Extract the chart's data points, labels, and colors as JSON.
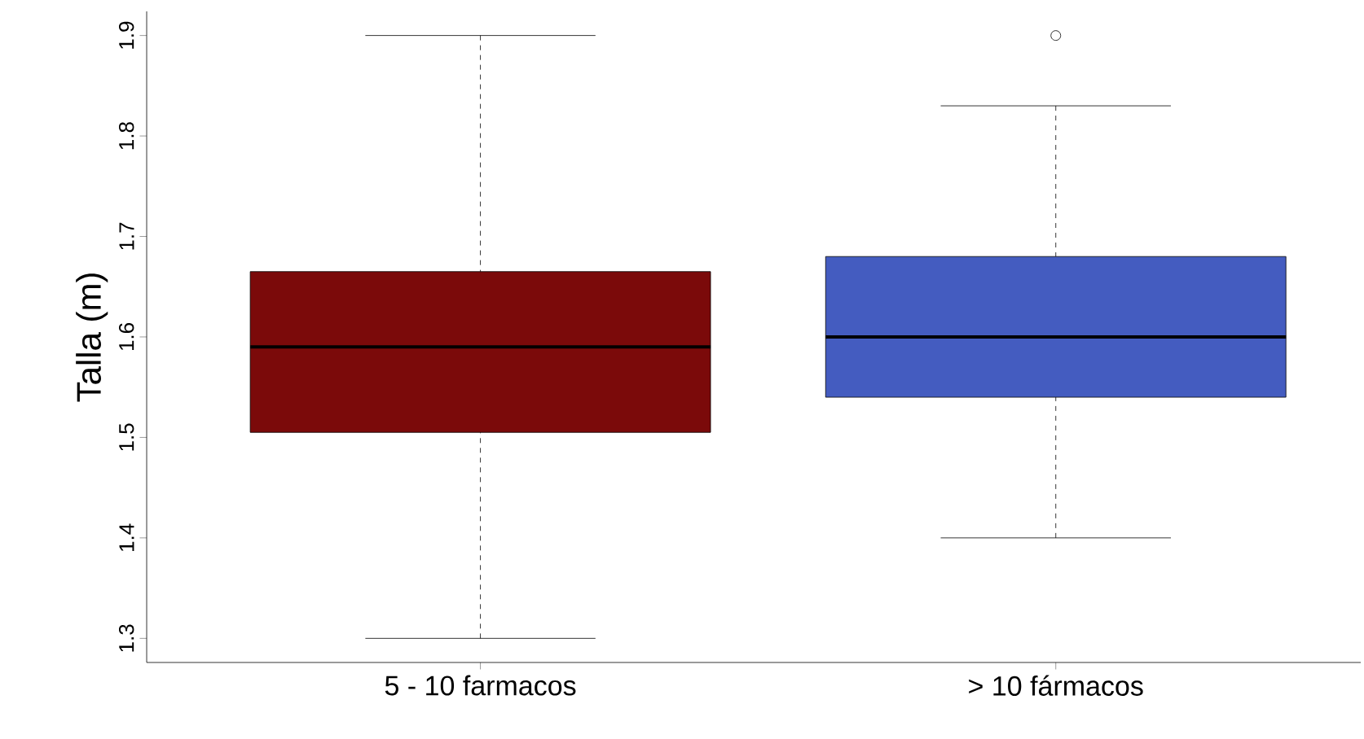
{
  "chart_data": {
    "type": "box",
    "ylabel": "Talla (m)",
    "categories": [
      "5 - 10 farmacos",
      "> 10 fármacos"
    ],
    "colors": [
      "#7b0a0a",
      "#445cc0"
    ],
    "boxes": [
      {
        "low": 1.3,
        "q1": 1.505,
        "median": 1.59,
        "q3": 1.665,
        "high": 1.9
      },
      {
        "low": 1.4,
        "q1": 1.54,
        "median": 1.6,
        "q3": 1.68,
        "high": 1.83,
        "outliers": [
          1.9
        ]
      }
    ],
    "ylim": [
      1.276,
      1.924
    ],
    "yticks": [
      1.3,
      1.4,
      1.5,
      1.6,
      1.7,
      1.8,
      1.9
    ],
    "grid": false
  }
}
